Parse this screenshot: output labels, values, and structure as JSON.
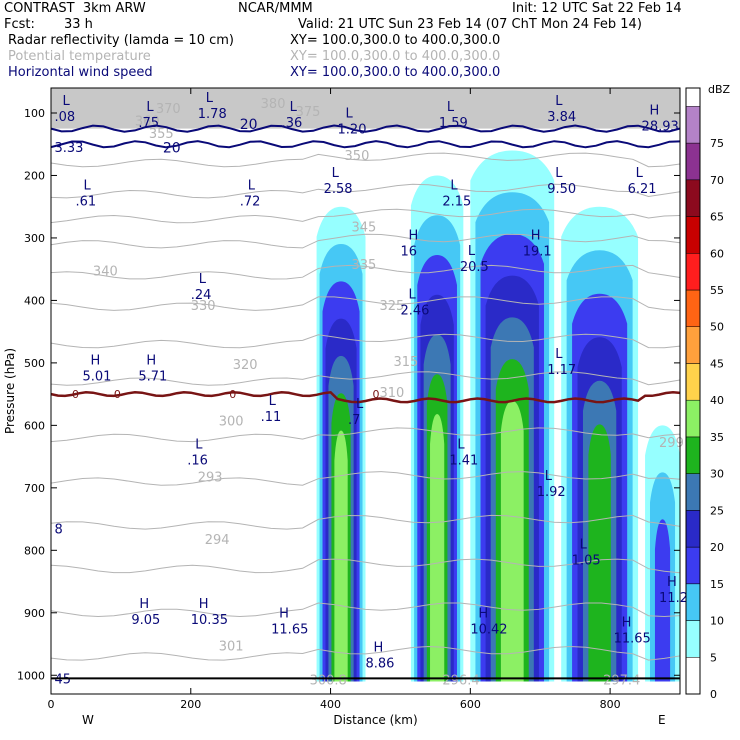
{
  "header": {
    "model": "CONTRAST  3km ARW",
    "org": "NCAR/MMM",
    "init": "Init: 12 UTC Sat 22 Feb 14",
    "fcst_label": "Fcst:",
    "fcst_value": "33 h",
    "valid": "Valid: 21 UTC Sun 23 Feb 14 (07 ChT Mon 24 Feb 14)",
    "fields": [
      {
        "name": "Radar reflectivity (lamda = 10 cm)",
        "xy": "XY= 100.0,300.0 to 400.0,300.0",
        "color": "#000000"
      },
      {
        "name": "Potential temperature",
        "xy": "XY= 100.0,300.0 to 400.0,300.0",
        "color": "#b4b4b4"
      },
      {
        "name": "Horizontal wind speed",
        "xy": "XY= 100.0,300.0 to 400.0,300.0",
        "color": "#0a0a78"
      }
    ]
  },
  "chart_data": {
    "type": "heatmap",
    "xlabel": "Distance (km)",
    "ylabel": "Pressure (hPa)",
    "xlim": [
      0,
      900
    ],
    "ylim": [
      1030,
      60
    ],
    "x_ticks": [
      0,
      200,
      400,
      600,
      800
    ],
    "y_ticks": [
      100,
      200,
      300,
      400,
      500,
      600,
      700,
      800,
      900,
      1000
    ],
    "x_ends": {
      "left": "W",
      "right": "E"
    },
    "colorbar": {
      "unit": "dBZ",
      "levels": [
        0,
        5,
        10,
        15,
        20,
        25,
        30,
        35,
        40,
        45,
        50,
        55,
        60,
        65,
        70,
        75
      ],
      "colors": [
        "#ffffff",
        "#96ffff",
        "#46c8f5",
        "#3c3cf0",
        "#2a2ac8",
        "#3c78b4",
        "#1eb41e",
        "#8cf064",
        "#ffd24b",
        "#ffa03c",
        "#ff6414",
        "#ff1e1e",
        "#c80000",
        "#8c0a1e",
        "#8c3291",
        "#b482c8"
      ]
    },
    "reflectivity_cells": [
      {
        "x0": 380,
        "x1": 450,
        "ptop": 250,
        "pbot": 1010,
        "vmax": 35
      },
      {
        "x0": 515,
        "x1": 590,
        "ptop": 200,
        "pbot": 1010,
        "vmax": 35
      },
      {
        "x0": 600,
        "x1": 720,
        "ptop": 160,
        "pbot": 1010,
        "vmax": 35
      },
      {
        "x0": 730,
        "x1": 840,
        "ptop": 250,
        "pbot": 1010,
        "vmax": 30
      },
      {
        "x0": 850,
        "x1": 900,
        "ptop": 600,
        "pbot": 1010,
        "vmax": 15
      }
    ],
    "freezing_level": {
      "label": "0",
      "pressure": 550
    },
    "theta_labels": [
      "370",
      "380",
      "375",
      "360",
      "355",
      "350",
      "345",
      "340",
      "335",
      "330",
      "325",
      "320",
      "315",
      "310",
      "300",
      "299",
      "293",
      "294",
      "301",
      "300.8",
      "296.4",
      "297.4"
    ],
    "wind_contour_labels": [
      "20",
      "20"
    ],
    "wind_extrema": [
      {
        "type": "L",
        "value": ".08",
        "x": 5,
        "p": 100
      },
      {
        "type": "L",
        "value": ".75",
        "x": 125,
        "p": 110
      },
      {
        "type": "L",
        "value": "1.78",
        "x": 210,
        "p": 95
      },
      {
        "type": "L",
        "value": ".36",
        "x": 330,
        "p": 110
      },
      {
        "type": "L",
        "value": "1.20",
        "x": 410,
        "p": 120
      },
      {
        "type": "L",
        "value": "1.59",
        "x": 555,
        "p": 110
      },
      {
        "type": "L",
        "value": "3.84",
        "x": 710,
        "p": 100
      },
      {
        "type": "H",
        "value": "28.93",
        "x": 845,
        "p": 115
      },
      {
        "type": "",
        "value": "3.33",
        "x": 5,
        "p": 150
      },
      {
        "type": "L",
        "value": ".61",
        "x": 35,
        "p": 235
      },
      {
        "type": "L",
        "value": ".72",
        "x": 270,
        "p": 235
      },
      {
        "type": "L",
        "value": "2.58",
        "x": 390,
        "p": 215
      },
      {
        "type": "L",
        "value": "2.15",
        "x": 560,
        "p": 235
      },
      {
        "type": "L",
        "value": "9.50",
        "x": 710,
        "p": 215
      },
      {
        "type": "L",
        "value": "6.21",
        "x": 825,
        "p": 215
      },
      {
        "type": "H",
        "value": "16",
        "x": 500,
        "p": 315
      },
      {
        "type": "L",
        "value": "20.5",
        "x": 585,
        "p": 340
      },
      {
        "type": "H",
        "value": "19.1",
        "x": 675,
        "p": 315
      },
      {
        "type": "L",
        "value": ".24",
        "x": 200,
        "p": 385
      },
      {
        "type": "L",
        "value": "2.46",
        "x": 500,
        "p": 410
      },
      {
        "type": "H",
        "value": "5.01",
        "x": 45,
        "p": 515
      },
      {
        "type": "H",
        "value": "5.71",
        "x": 125,
        "p": 515
      },
      {
        "type": "L",
        "value": "1.17",
        "x": 710,
        "p": 505
      },
      {
        "type": "L",
        "value": ".11",
        "x": 300,
        "p": 580
      },
      {
        "type": "L",
        "value": ".7",
        "x": 425,
        "p": 585
      },
      {
        "type": "L",
        "value": ".16",
        "x": 195,
        "p": 650
      },
      {
        "type": "L",
        "value": "1.41",
        "x": 570,
        "p": 650
      },
      {
        "type": "L",
        "value": "1.92",
        "x": 695,
        "p": 700
      },
      {
        "type": "",
        "value": "8",
        "x": 5,
        "p": 760
      },
      {
        "type": "L",
        "value": "1.05",
        "x": 745,
        "p": 810
      },
      {
        "type": "H",
        "value": "9.05",
        "x": 115,
        "p": 905
      },
      {
        "type": "H",
        "value": "10.35",
        "x": 200,
        "p": 905
      },
      {
        "type": "H",
        "value": "11.65",
        "x": 315,
        "p": 920
      },
      {
        "type": "H",
        "value": "11.25",
        "x": 870,
        "p": 870
      },
      {
        "type": "H",
        "value": "10.42",
        "x": 600,
        "p": 920
      },
      {
        "type": "H",
        "value": "11.65",
        "x": 805,
        "p": 935
      },
      {
        "type": "H",
        "value": "8.86",
        "x": 450,
        "p": 975
      },
      {
        "type": "",
        "value": "45",
        "x": 5,
        "p": 1000
      }
    ]
  }
}
